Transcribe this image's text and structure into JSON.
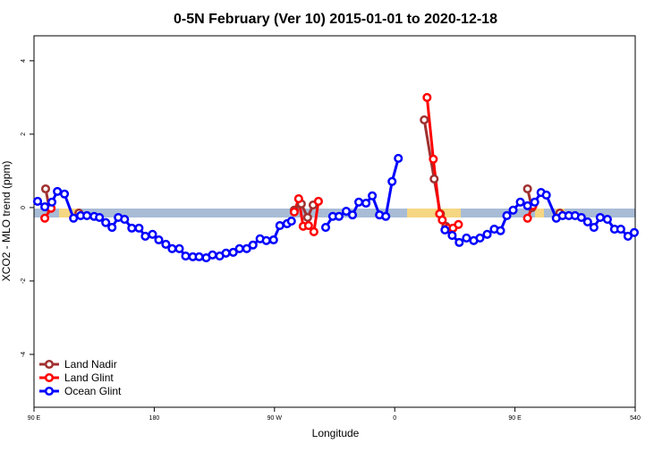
{
  "chart_data": {
    "type": "line",
    "title": "0-5N February (Ver 10)   2015-01-01 to 2020-12-18",
    "x_label": "Longitude",
    "y_label": "XCO2 - MLO trend (ppm)",
    "xlim": [
      90,
      540
    ],
    "ylim": [
      -5.44,
      4.68
    ],
    "xticks": [
      {
        "value": 90,
        "label": "90 E"
      },
      180,
      {
        "value": 270,
        "label": "90 W"
      },
      {
        "value": 360,
        "label": "0"
      },
      {
        "value": 450,
        "label": "90 E"
      },
      540
    ],
    "yticks": [
      -4,
      -2,
      0,
      2,
      4
    ],
    "legend": "bottom-left",
    "series": [
      {
        "name": "Land Nadir",
        "color": "#a03030",
        "x": [
          98.7,
          101.4,
          null,
          123.6,
          null,
          284.8,
          290.1,
          294.8,
          298.9,
          null,
          382.1,
          389.5,
          394.2,
          398.3,
          null,
          459.4,
          462.7,
          null,
          483.6
        ],
        "values": [
          0.51,
          0.0,
          null,
          -0.15,
          null,
          -0.07,
          0.1,
          -0.27,
          0.07,
          null,
          2.39,
          0.78,
          -0.17,
          -0.51,
          null,
          0.51,
          0.0,
          null,
          -0.15
        ]
      },
      {
        "name": "Land Glint",
        "color": "#ff0000",
        "x": [
          98.1,
          102.8,
          null,
          284.8,
          288.1,
          291.5,
          295.5,
          299.5,
          302.9,
          null,
          384.2,
          388.9,
          393.6,
          395.6,
          399.6,
          403.6,
          407.7,
          null,
          459.4,
          463.4
        ],
        "values": [
          -0.29,
          -0.02,
          null,
          -0.12,
          0.24,
          -0.51,
          -0.49,
          -0.66,
          0.17,
          null,
          3.0,
          1.32,
          -0.17,
          -0.34,
          -0.56,
          -0.56,
          -0.46,
          null,
          -0.29,
          0.05
        ]
      },
      {
        "name": "Ocean Glint",
        "color": "#0000ff",
        "x": [
          92.7,
          98.1,
          103.4,
          107.5,
          112.8,
          119.6,
          124.9,
          129.6,
          135.0,
          139.0,
          143.7,
          148.4,
          153.1,
          157.8,
          163.2,
          168.6,
          173.3,
          178.7,
          183.4,
          188.7,
          193.4,
          198.8,
          203.5,
          208.9,
          213.6,
          218.9,
          223.6,
          229.0,
          233.7,
          239.1,
          243.8,
          249.2,
          253.9,
          259.2,
          263.9,
          269.3,
          274.0,
          279.4,
          282.7,
          null,
          308.3,
          313.6,
          318.3,
          323.7,
          328.4,
          333.1,
          338.5,
          343.2,
          348.6,
          353.3,
          358.0,
          362.7,
          null,
          397.6,
          403.0,
          408.3,
          413.7,
          419.1,
          423.8,
          429.2,
          434.5,
          439.2,
          443.9,
          448.6,
          454.0,
          459.4,
          464.8,
          469.5,
          473.5,
          480.9,
          485.6,
          490.3,
          495.0,
          499.7,
          504.4,
          509.1,
          513.8,
          519.2,
          524.5,
          529.2,
          534.6,
          539.3
        ],
        "values": [
          0.17,
          0.02,
          0.15,
          0.44,
          0.37,
          -0.29,
          -0.22,
          -0.22,
          -0.24,
          -0.27,
          -0.41,
          -0.54,
          -0.27,
          -0.32,
          -0.56,
          -0.56,
          -0.78,
          -0.73,
          -0.88,
          -1.0,
          -1.12,
          -1.12,
          -1.32,
          -1.34,
          -1.34,
          -1.37,
          -1.29,
          -1.32,
          -1.24,
          -1.22,
          -1.12,
          -1.12,
          -1.02,
          -0.85,
          -0.9,
          -0.88,
          -0.49,
          -0.44,
          -0.37,
          null,
          -0.54,
          -0.24,
          -0.24,
          -0.1,
          -0.2,
          0.15,
          0.12,
          0.32,
          -0.2,
          -0.24,
          0.71,
          1.34,
          null,
          -0.61,
          -0.76,
          -0.95,
          -0.83,
          -0.9,
          -0.83,
          -0.73,
          -0.59,
          -0.63,
          -0.22,
          -0.07,
          0.15,
          0.05,
          0.15,
          0.41,
          0.34,
          -0.29,
          -0.22,
          -0.22,
          -0.22,
          -0.27,
          -0.39,
          -0.54,
          -0.27,
          -0.32,
          -0.59,
          -0.59,
          -0.78,
          -0.68
        ]
      }
    ]
  }
}
